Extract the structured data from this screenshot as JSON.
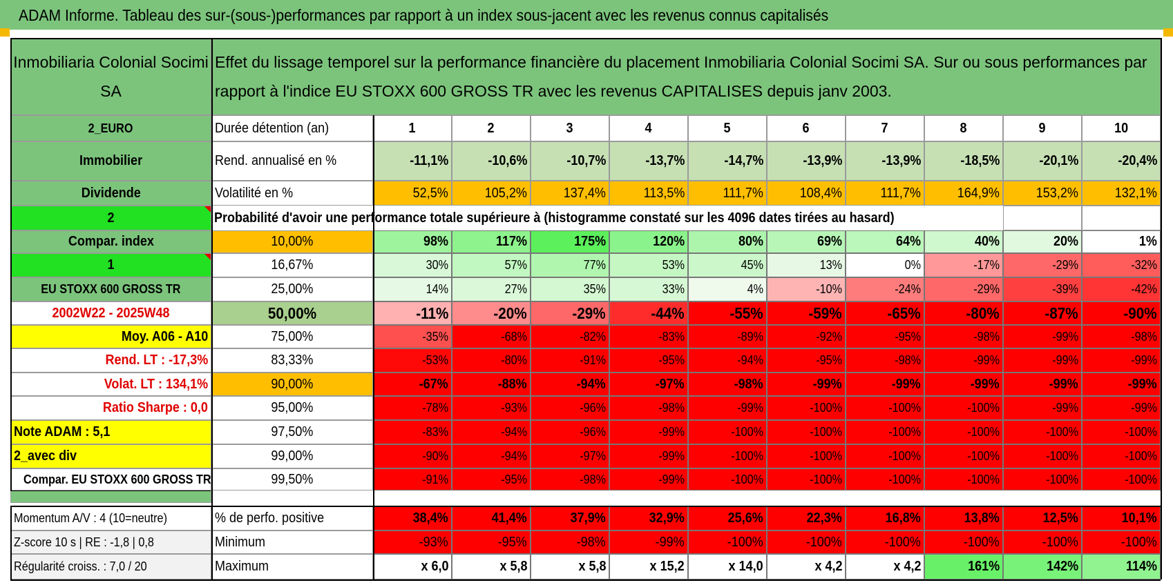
{
  "page_title": "ADAM Informe. Tableau des sur-(sous-)performances par rapport à un index sous-jacent avec les revenus connus capitalisés",
  "header": {
    "asset_name": "Inmobiliaria Colonial Socimi SA",
    "description": "Effet du lissage temporel sur la performance financière du placement Inmobiliaria Colonial Socimi SA. Sur ou sous performances par rapport à l'indice EU STOXX 600 GROSS TR avec les revenus CAPITALISES depuis janv 2003."
  },
  "holding": {
    "label": "Durée détention (an)",
    "years": [
      "1",
      "2",
      "3",
      "4",
      "5",
      "6",
      "7",
      "8",
      "9",
      "10"
    ]
  },
  "annual_return": {
    "label": "Rend. annualisé en %",
    "values": [
      "-11,1%",
      "-10,6%",
      "-10,7%",
      "-13,7%",
      "-14,7%",
      "-13,9%",
      "-13,9%",
      "-18,5%",
      "-20,1%",
      "-20,4%"
    ]
  },
  "volatility": {
    "label": "Volatilité en %",
    "values": [
      "52,5%",
      "105,2%",
      "137,4%",
      "113,5%",
      "111,7%",
      "108,4%",
      "111,7%",
      "164,9%",
      "153,2%",
      "132,1%"
    ]
  },
  "probability_header": "Probabilité d'avoir une performance totale supérieure à (histogramme constaté sur les 4096 dates tirées au hasard)",
  "left_panel": [
    "2_EURO",
    "Immobilier",
    "Dividende",
    "2",
    "Compar. index",
    "1",
    "EU STOXX 600 GROSS TR",
    "2002W22 - 2025W48",
    "Moy. A06 - A10",
    "Rend. LT :   -17,3%",
    "Volat. LT :   134,1%",
    "Ratio Sharpe :     0,0",
    "Note ADAM : 5,1",
    "2_avec div",
    "Compar. EU STOXX 600 GROSS TR"
  ],
  "probabilities": [
    {
      "level": "10,00%",
      "values": [
        "98%",
        "117%",
        "175%",
        "120%",
        "80%",
        "69%",
        "64%",
        "40%",
        "20%",
        "1%"
      ]
    },
    {
      "level": "16,67%",
      "values": [
        "30%",
        "57%",
        "77%",
        "53%",
        "45%",
        "13%",
        "0%",
        "-17%",
        "-29%",
        "-32%"
      ]
    },
    {
      "level": "25,00%",
      "values": [
        "14%",
        "27%",
        "35%",
        "33%",
        "4%",
        "-10%",
        "-24%",
        "-29%",
        "-39%",
        "-42%"
      ]
    },
    {
      "level": "50,00%",
      "values": [
        "-11%",
        "-20%",
        "-29%",
        "-44%",
        "-55%",
        "-59%",
        "-65%",
        "-80%",
        "-87%",
        "-90%"
      ]
    },
    {
      "level": "75,00%",
      "values": [
        "-35%",
        "-68%",
        "-82%",
        "-83%",
        "-89%",
        "-92%",
        "-95%",
        "-98%",
        "-99%",
        "-98%"
      ]
    },
    {
      "level": "83,33%",
      "values": [
        "-53%",
        "-80%",
        "-91%",
        "-95%",
        "-94%",
        "-95%",
        "-98%",
        "-99%",
        "-99%",
        "-99%"
      ]
    },
    {
      "level": "90,00%",
      "values": [
        "-67%",
        "-88%",
        "-94%",
        "-97%",
        "-98%",
        "-99%",
        "-99%",
        "-99%",
        "-99%",
        "-99%"
      ]
    },
    {
      "level": "95,00%",
      "values": [
        "-78%",
        "-93%",
        "-96%",
        "-98%",
        "-99%",
        "-100%",
        "-100%",
        "-100%",
        "-99%",
        "-99%"
      ]
    },
    {
      "level": "97,50%",
      "values": [
        "-83%",
        "-94%",
        "-96%",
        "-99%",
        "-100%",
        "-100%",
        "-100%",
        "-100%",
        "-100%",
        "-100%"
      ]
    },
    {
      "level": "99,00%",
      "values": [
        "-90%",
        "-94%",
        "-97%",
        "-99%",
        "-100%",
        "-100%",
        "-100%",
        "-100%",
        "-100%",
        "-100%"
      ]
    },
    {
      "level": "99,50%",
      "values": [
        "-91%",
        "-95%",
        "-98%",
        "-99%",
        "-100%",
        "-100%",
        "-100%",
        "-100%",
        "-100%",
        "-100%"
      ]
    }
  ],
  "summary": [
    {
      "left": "Momentum A/V : 4 (10=neutre)",
      "label": "% de perfo. positive",
      "values": [
        "38,4%",
        "41,4%",
        "37,9%",
        "32,9%",
        "25,6%",
        "22,3%",
        "16,8%",
        "13,8%",
        "12,5%",
        "10,1%"
      ]
    },
    {
      "left": "Z-score 10 s | RE : -1,8 | 0,8",
      "label": "Minimum",
      "values": [
        "-93%",
        "-95%",
        "-98%",
        "-99%",
        "-100%",
        "-100%",
        "-100%",
        "-100%",
        "-100%",
        "-100%"
      ]
    },
    {
      "left": "Régularité croiss. : 7,0 / 20",
      "label": "Maximum",
      "values": [
        "x 6,0",
        "x 5,8",
        "x 5,8",
        "x 15,2",
        "x 14,0",
        "x 4,2",
        "x 4,2",
        "161%",
        "142%",
        "114%"
      ]
    }
  ],
  "colors": {
    "banner": "#7cc47c",
    "header_green": "#7cc47c",
    "bright_green": "#22e022",
    "yellow": "#ffff00",
    "orange": "#ffbf00",
    "return_green": "#c6e0b4",
    "level_green": "#a9d08e",
    "deep_red": "#ff0000",
    "marker": "#f5b800"
  }
}
